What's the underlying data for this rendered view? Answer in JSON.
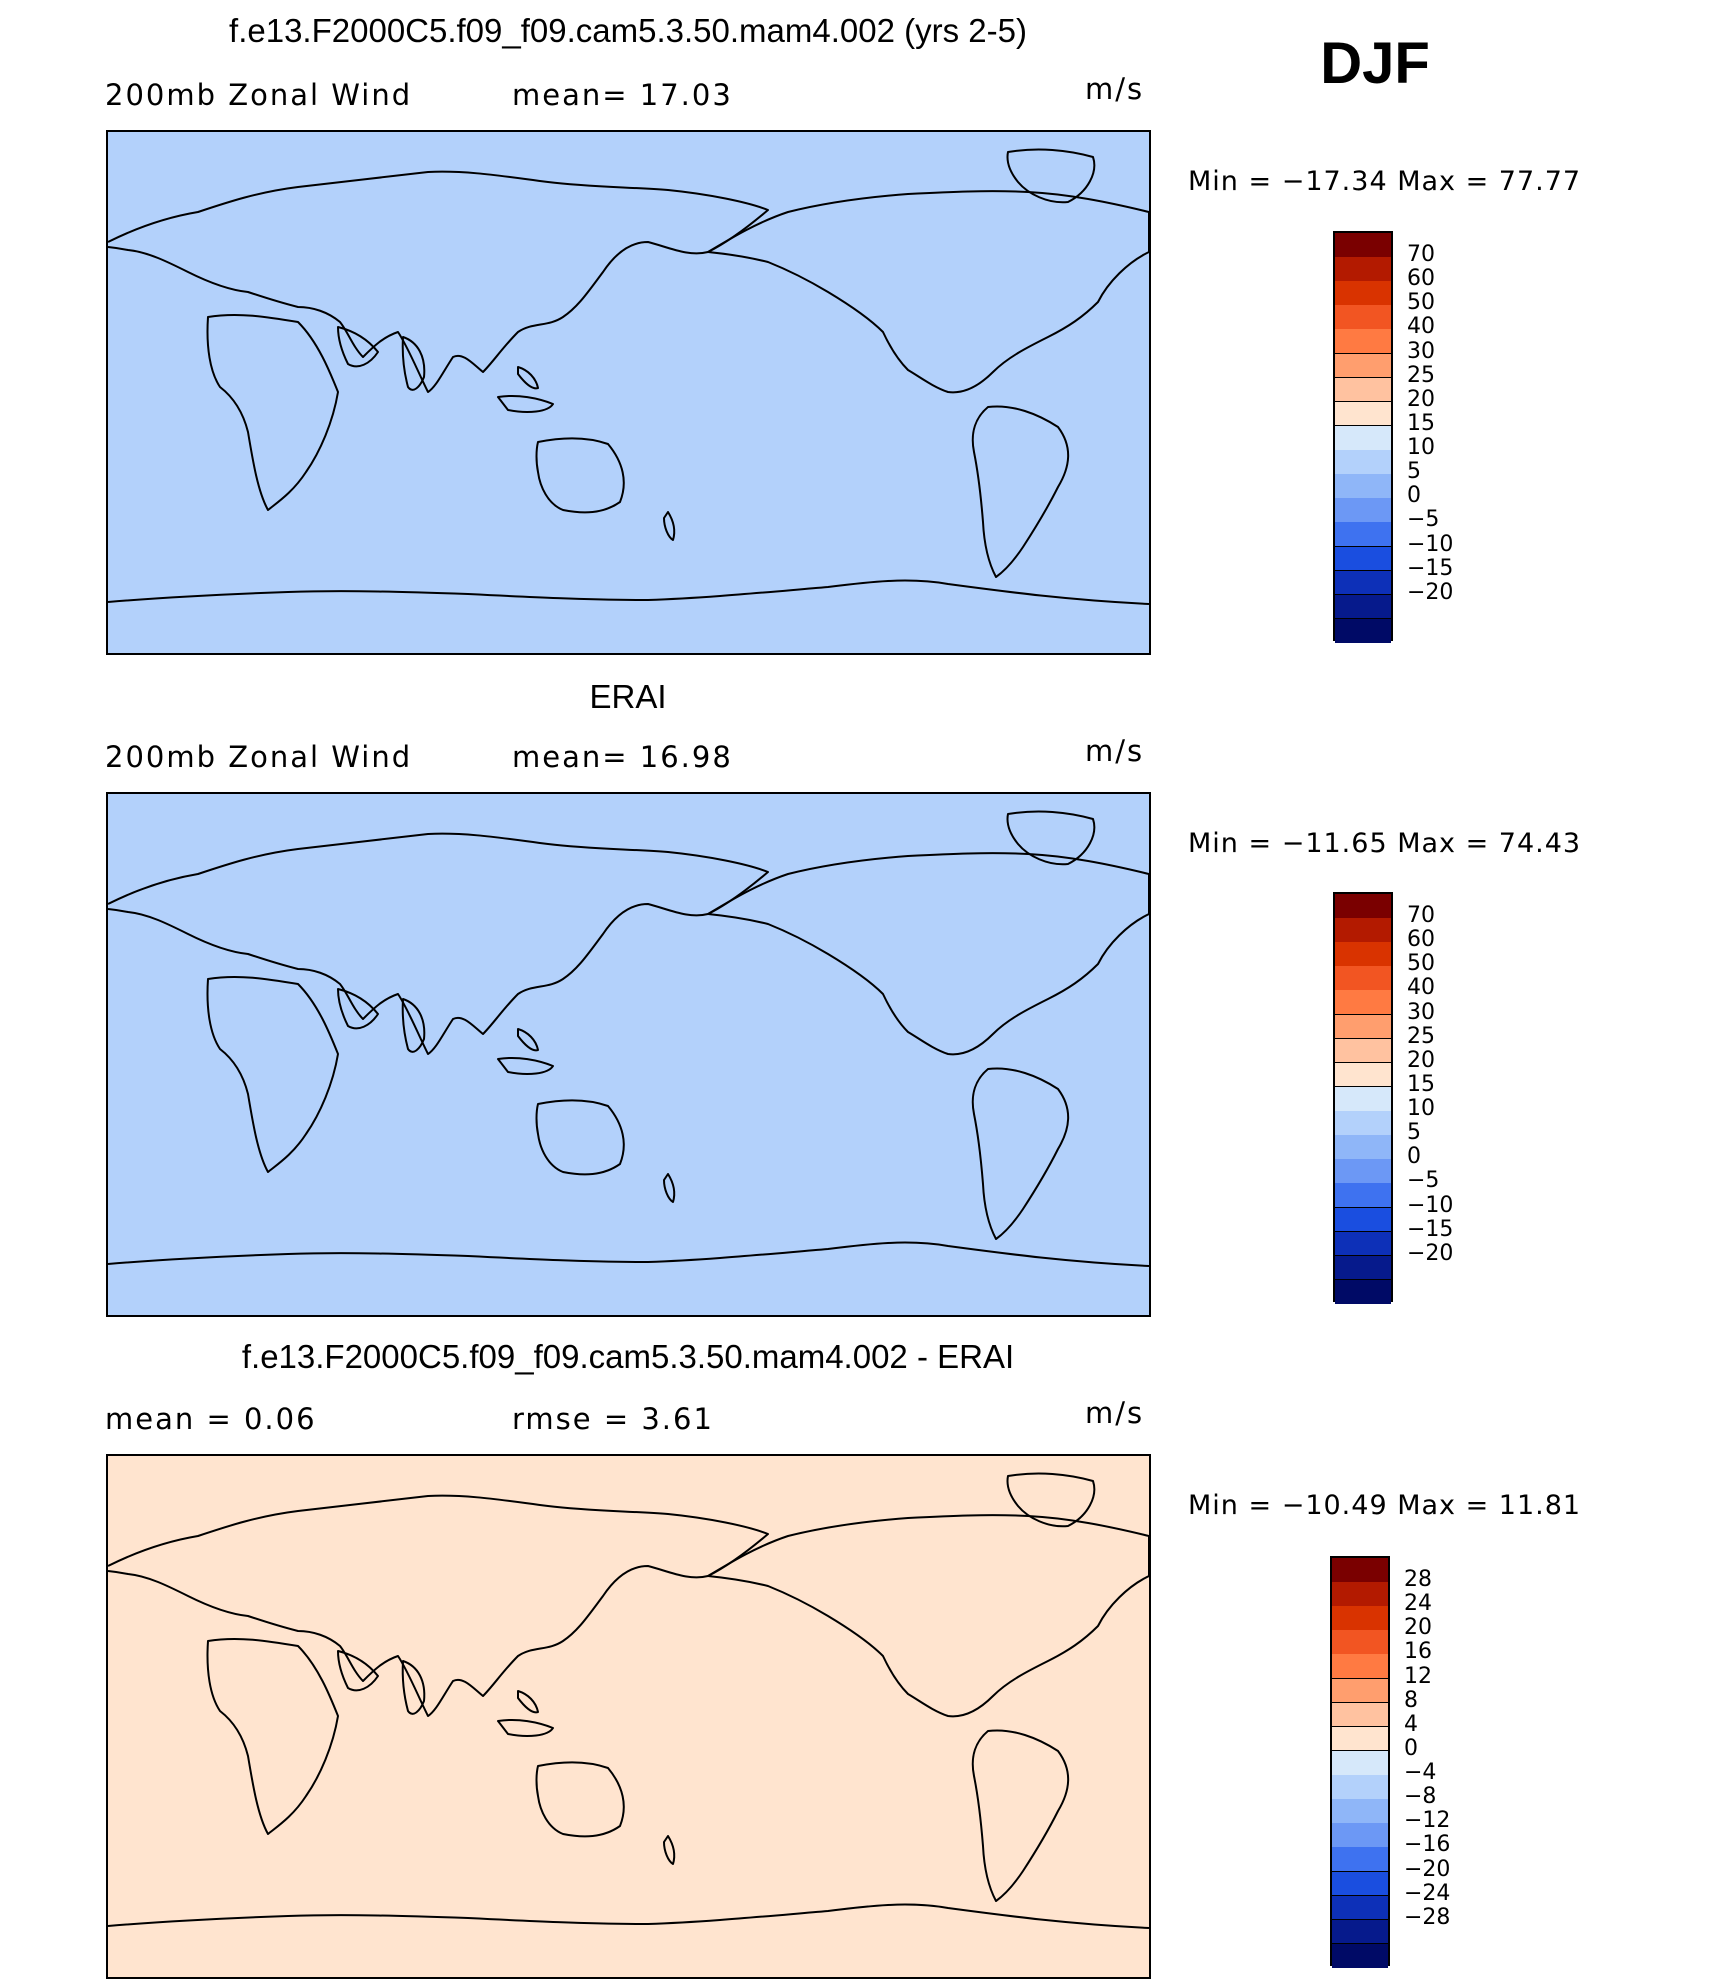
{
  "season": "DJF",
  "colors": {
    "full_scale": [
      "#7a0000",
      "#b31a00",
      "#d93300",
      "#f25522",
      "#ff7a42",
      "#ff9e6e",
      "#ffc2a0",
      "#ffe4cf",
      "#d6e8fa",
      "#b3d1fb",
      "#8fb6f8",
      "#6c98f5",
      "#3e72f0",
      "#1a4ee0",
      "#0d30b8",
      "#061a8c",
      "#000a66"
    ],
    "diff_scale": [
      "#7a0000",
      "#b31a00",
      "#d93300",
      "#f25522",
      "#ff7a42",
      "#ff9e6e",
      "#ffc2a0",
      "#ffe4cf",
      "#d6e8fa",
      "#b3d1fb",
      "#8fb6f8",
      "#6c98f5",
      "#3e72f0",
      "#1a4ee0",
      "#0d30b8",
      "#061a8c",
      "#000a66"
    ]
  },
  "panels": [
    {
      "title": "f.e13.F2000C5.f09_f09.cam5.3.50.mam4.002 (yrs 2-5)",
      "left_label": "200mb  Zonal  Wind",
      "mid_label": "mean=   17.03",
      "units": "m/s",
      "minmax": "Min  =  −17.34  Max  =    77.77",
      "colorbar_ticks": [
        "70",
        "60",
        "50",
        "40",
        "30",
        "25",
        "20",
        "15",
        "10",
        "5",
        "0",
        "−5",
        "−10",
        "−15",
        "−20"
      ],
      "kind": "model"
    },
    {
      "title": "ERAI",
      "left_label": "200mb  Zonal  Wind",
      "mid_label": "mean=   16.98",
      "units": "m/s",
      "minmax": "Min  =  −11.65  Max  =    74.43",
      "colorbar_ticks": [
        "70",
        "60",
        "50",
        "40",
        "30",
        "25",
        "20",
        "15",
        "10",
        "5",
        "0",
        "−5",
        "−10",
        "−15",
        "−20"
      ],
      "kind": "obs"
    },
    {
      "title": "f.e13.F2000C5.f09_f09.cam5.3.50.mam4.002 - ERAI",
      "left_label": "mean  =      0.06",
      "mid_label": "rmse  =      3.61",
      "units": "m/s",
      "minmax": "Min  =  −10.49  Max  =    11.81",
      "colorbar_ticks": [
        "28",
        "24",
        "20",
        "16",
        "12",
        "8",
        "4",
        "0",
        "−4",
        "−8",
        "−12",
        "−16",
        "−20",
        "−24",
        "−28"
      ],
      "kind": "diff"
    }
  ]
}
